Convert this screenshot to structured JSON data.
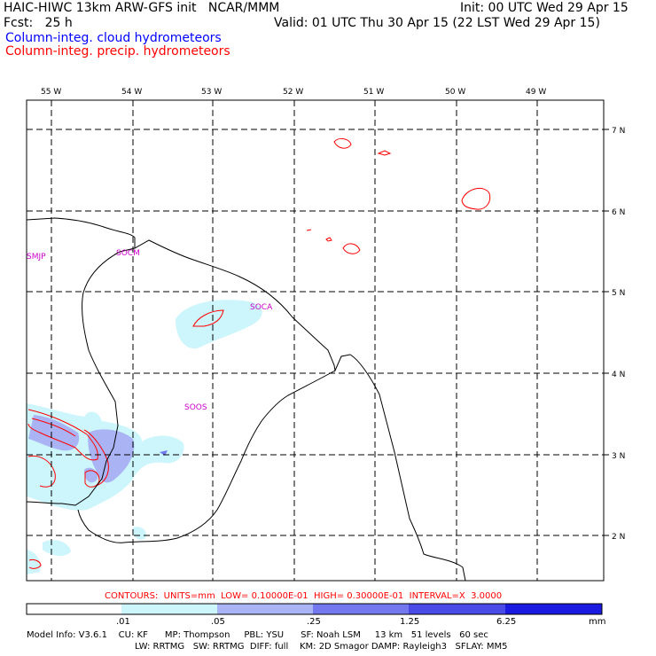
{
  "header": {
    "title": "HAIC-HIWC 13km ARW-GFS init   NCAR/MMM",
    "init": "Init: 00 UTC Wed 29 Apr 15",
    "fcst": "Fcst:   25 h",
    "valid": "Valid: 01 UTC Thu 30 Apr 15 (22 LST Wed 29 Apr 15)",
    "legend_cloud": "Column-integ. cloud hydrometeors",
    "legend_precip": "Column-integ. precip. hydrometeors"
  },
  "colors": {
    "cloud_text": "#0000ff",
    "precip_text": "#ff0000",
    "contour": "#ff0000",
    "station": "#cc00cc",
    "shade_1": "#ccf5fc",
    "shade_2": "#aab4f5",
    "shade_3": "#7478ee",
    "shade_4": "#4a4ae6",
    "shade_5": "#1a1ae0"
  },
  "map": {
    "lon_labels": [
      "55 W",
      "54 W",
      "53 W",
      "52 W",
      "51 W",
      "50 W",
      "49 W"
    ],
    "lat_labels": [
      "7 N",
      "6 N",
      "5 N",
      "4 N",
      "3 N",
      "2 N"
    ],
    "stations": [
      "SMJP",
      "SOCM",
      "SOCA",
      "SOOS"
    ]
  },
  "footer": {
    "contours": "CONTOURS:  UNITS=mm  LOW= 0.10000E-01  HIGH= 0.30000E-01  INTERVAL=X  3.0000",
    "colorbar_labels": [
      ".01",
      ".05",
      ".25",
      "1.25",
      "6.25"
    ],
    "colorbar_unit": "mm",
    "model_info_1": "Model Info: V3.6.1    CU: KF      MP: Thompson     PBL: YSU      SF: Noah LSM     13 km   51 levels   60 sec",
    "model_info_2": "LW: RRTMG   SW: RRTMG  DIFF: full    KM: 2D Smagor DAMP: Rayleigh3   SFLAY: MM5"
  }
}
